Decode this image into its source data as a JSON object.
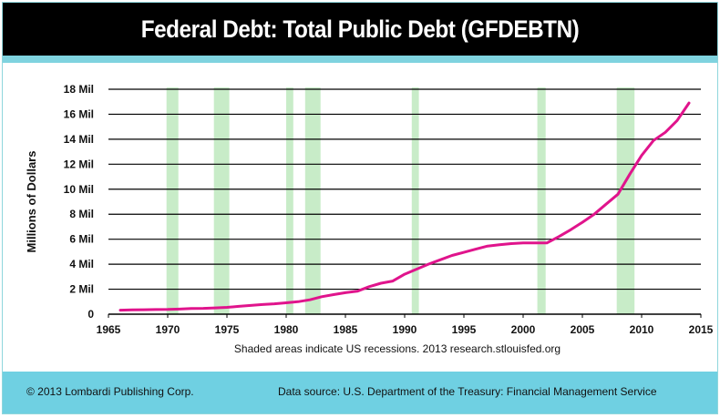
{
  "header": {
    "title": "Federal Debt: Total Public Debt (GFDEBTN)"
  },
  "footer": {
    "copyright": "© 2013 Lombardi Publishing Corp.",
    "data_source": "Data source: U.S. Department of the Treasury: Financial Management Service"
  },
  "colors": {
    "title_bg": "#000000",
    "accent": "#7fd3df",
    "footer_bg": "#6fd0e2",
    "line": "#e0148c",
    "recession": "#c8ecc8"
  },
  "chart_data": {
    "type": "line",
    "title": "",
    "xlabel": "",
    "ylabel": "Millions of Dollars",
    "note": "Shaded areas indicate US recessions. 2013 research.stlouisfed.org",
    "xlim": [
      1965,
      2015
    ],
    "ylim": [
      0,
      18
    ],
    "x_ticks": [
      1965,
      1970,
      1975,
      1980,
      1985,
      1990,
      1995,
      2000,
      2005,
      2010,
      2015
    ],
    "y_ticks": [
      {
        "value": 0,
        "label": "0"
      },
      {
        "value": 2,
        "label": "2 Mil"
      },
      {
        "value": 4,
        "label": "4 Mil"
      },
      {
        "value": 6,
        "label": "6 Mil"
      },
      {
        "value": 8,
        "label": "8 Mil"
      },
      {
        "value": 10,
        "label": "10 Mil"
      },
      {
        "value": 12,
        "label": "12 Mil"
      },
      {
        "value": 14,
        "label": "14 Mil"
      },
      {
        "value": 16,
        "label": "16 Mil"
      },
      {
        "value": 18,
        "label": "18 Mil"
      }
    ],
    "grid": "horizontal",
    "recessions": [
      [
        1969.9,
        1970.9
      ],
      [
        1973.9,
        1975.2
      ],
      [
        1980.0,
        1980.6
      ],
      [
        1981.6,
        1982.9
      ],
      [
        1990.6,
        1991.2
      ],
      [
        2001.2,
        2001.9
      ],
      [
        2007.9,
        2009.4
      ]
    ],
    "series": [
      {
        "x": [
          1966.0,
          1967.0,
          1968.0,
          1969.0,
          1970.0,
          1971.0,
          1972.0,
          1973.0,
          1974.0,
          1975.0,
          1976.0,
          1977.0,
          1978.0,
          1979.0,
          1980.0,
          1981.0,
          1982.0,
          1983.0,
          1984.0,
          1985.0,
          1986.0,
          1987.0,
          1988.0,
          1989.0,
          1990.0,
          1991.0,
          1992.0,
          1993.0,
          1994.0,
          1995.0,
          1996.0,
          1997.0,
          1998.0,
          1999.0,
          2000.0,
          2001.0,
          2002.0,
          2003.0,
          2004.0,
          2005.0,
          2006.0,
          2007.0,
          2008.0,
          2009.0,
          2010.0,
          2011.0,
          2012.0,
          2013.0,
          2014.0
        ],
        "values": [
          0.32,
          0.34,
          0.36,
          0.37,
          0.38,
          0.41,
          0.45,
          0.47,
          0.5,
          0.55,
          0.63,
          0.7,
          0.77,
          0.83,
          0.91,
          1.0,
          1.15,
          1.4,
          1.57,
          1.72,
          1.84,
          2.2,
          2.48,
          2.65,
          3.2,
          3.6,
          4.0,
          4.35,
          4.7,
          4.95,
          5.2,
          5.45,
          5.55,
          5.65,
          5.7,
          5.7,
          5.7,
          6.2,
          6.75,
          7.35,
          8.0,
          8.8,
          9.6,
          11.2,
          12.7,
          13.9,
          14.55,
          15.5,
          16.9
        ]
      }
    ]
  }
}
